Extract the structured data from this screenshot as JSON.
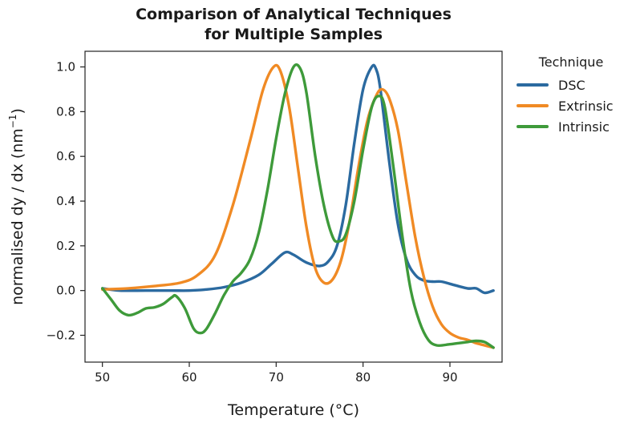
{
  "chart_data": {
    "type": "line",
    "title_lines": [
      "Comparison of Analytical Techniques",
      "for Multiple Samples"
    ],
    "xlabel": "Temperature (°C)",
    "ylabel_main": "normalised dy / dx (nm",
    "ylabel_sup": "−1",
    "ylabel_close": ")",
    "xlim": [
      48,
      96
    ],
    "ylim": [
      -0.32,
      1.07
    ],
    "x_ticks": [
      50,
      60,
      70,
      80,
      90
    ],
    "x_tick_labels": [
      "50",
      "60",
      "70",
      "80",
      "90"
    ],
    "y_ticks": [
      -0.2,
      0.0,
      0.2,
      0.4,
      0.6,
      0.8,
      1.0
    ],
    "y_tick_labels": [
      "−0.2",
      "0.0",
      "0.2",
      "0.4",
      "0.6",
      "0.8",
      "1.0"
    ],
    "grid": false,
    "legend": {
      "title": "Technique",
      "position": "outside-right"
    },
    "series": [
      {
        "name": "DSC",
        "color": "#2b6aa0",
        "points": [
          [
            50,
            0.01
          ],
          [
            52,
            0.0
          ],
          [
            55,
            0.0
          ],
          [
            58,
            0.0
          ],
          [
            60,
            0.0
          ],
          [
            62,
            0.005
          ],
          [
            64,
            0.015
          ],
          [
            66,
            0.035
          ],
          [
            68,
            0.07
          ],
          [
            69.5,
            0.12
          ],
          [
            71,
            0.17
          ],
          [
            72,
            0.16
          ],
          [
            73.5,
            0.125
          ],
          [
            75,
            0.11
          ],
          [
            76,
            0.13
          ],
          [
            77,
            0.2
          ],
          [
            78,
            0.38
          ],
          [
            79,
            0.66
          ],
          [
            80,
            0.9
          ],
          [
            81,
            1.0
          ],
          [
            81.5,
            0.99
          ],
          [
            82,
            0.9
          ],
          [
            83,
            0.58
          ],
          [
            84,
            0.3
          ],
          [
            85,
            0.14
          ],
          [
            86,
            0.07
          ],
          [
            87,
            0.045
          ],
          [
            88,
            0.04
          ],
          [
            89,
            0.04
          ],
          [
            90,
            0.03
          ],
          [
            92,
            0.01
          ],
          [
            93,
            0.01
          ],
          [
            94,
            -0.01
          ],
          [
            95,
            0.0
          ]
        ]
      },
      {
        "name": "Extrinsic",
        "color": "#f08a24",
        "points": [
          [
            50,
            0.005
          ],
          [
            53,
            0.01
          ],
          [
            56,
            0.02
          ],
          [
            59,
            0.035
          ],
          [
            61,
            0.07
          ],
          [
            63,
            0.16
          ],
          [
            65,
            0.38
          ],
          [
            67,
            0.67
          ],
          [
            68.5,
            0.9
          ],
          [
            69.7,
            1.0
          ],
          [
            70.5,
            0.98
          ],
          [
            71.5,
            0.82
          ],
          [
            72.5,
            0.55
          ],
          [
            73.5,
            0.28
          ],
          [
            74.5,
            0.1
          ],
          [
            75.5,
            0.035
          ],
          [
            76.5,
            0.05
          ],
          [
            77.5,
            0.14
          ],
          [
            78.5,
            0.32
          ],
          [
            79.5,
            0.56
          ],
          [
            80.5,
            0.76
          ],
          [
            81.5,
            0.87
          ],
          [
            82.2,
            0.9
          ],
          [
            83,
            0.86
          ],
          [
            84,
            0.72
          ],
          [
            85,
            0.48
          ],
          [
            86,
            0.24
          ],
          [
            87,
            0.06
          ],
          [
            88,
            -0.07
          ],
          [
            89,
            -0.15
          ],
          [
            90,
            -0.19
          ],
          [
            91,
            -0.21
          ],
          [
            92,
            -0.22
          ],
          [
            93,
            -0.235
          ],
          [
            94,
            -0.245
          ],
          [
            95,
            -0.255
          ]
        ]
      },
      {
        "name": "Intrinsic",
        "color": "#3e9a3a",
        "points": [
          [
            50,
            0.01
          ],
          [
            51,
            -0.04
          ],
          [
            52,
            -0.09
          ],
          [
            53,
            -0.11
          ],
          [
            54,
            -0.1
          ],
          [
            55,
            -0.08
          ],
          [
            56,
            -0.075
          ],
          [
            57,
            -0.06
          ],
          [
            58,
            -0.03
          ],
          [
            58.5,
            -0.025
          ],
          [
            59.5,
            -0.08
          ],
          [
            60.5,
            -0.17
          ],
          [
            61.3,
            -0.19
          ],
          [
            62,
            -0.17
          ],
          [
            63,
            -0.1
          ],
          [
            64,
            -0.02
          ],
          [
            65,
            0.04
          ],
          [
            66,
            0.08
          ],
          [
            67,
            0.14
          ],
          [
            68,
            0.26
          ],
          [
            69,
            0.45
          ],
          [
            70,
            0.68
          ],
          [
            71,
            0.88
          ],
          [
            72,
            1.0
          ],
          [
            72.8,
            0.99
          ],
          [
            73.5,
            0.88
          ],
          [
            74.5,
            0.6
          ],
          [
            75.5,
            0.38
          ],
          [
            76.5,
            0.24
          ],
          [
            77.2,
            0.22
          ],
          [
            78,
            0.25
          ],
          [
            79,
            0.4
          ],
          [
            80,
            0.63
          ],
          [
            81,
            0.82
          ],
          [
            81.8,
            0.87
          ],
          [
            82.5,
            0.82
          ],
          [
            83.5,
            0.55
          ],
          [
            84.5,
            0.25
          ],
          [
            85.5,
            0.0
          ],
          [
            86.5,
            -0.14
          ],
          [
            87.5,
            -0.22
          ],
          [
            88.5,
            -0.245
          ],
          [
            90,
            -0.24
          ],
          [
            91,
            -0.235
          ],
          [
            92,
            -0.23
          ],
          [
            93,
            -0.225
          ],
          [
            94,
            -0.23
          ],
          [
            95,
            -0.255
          ]
        ]
      }
    ]
  }
}
